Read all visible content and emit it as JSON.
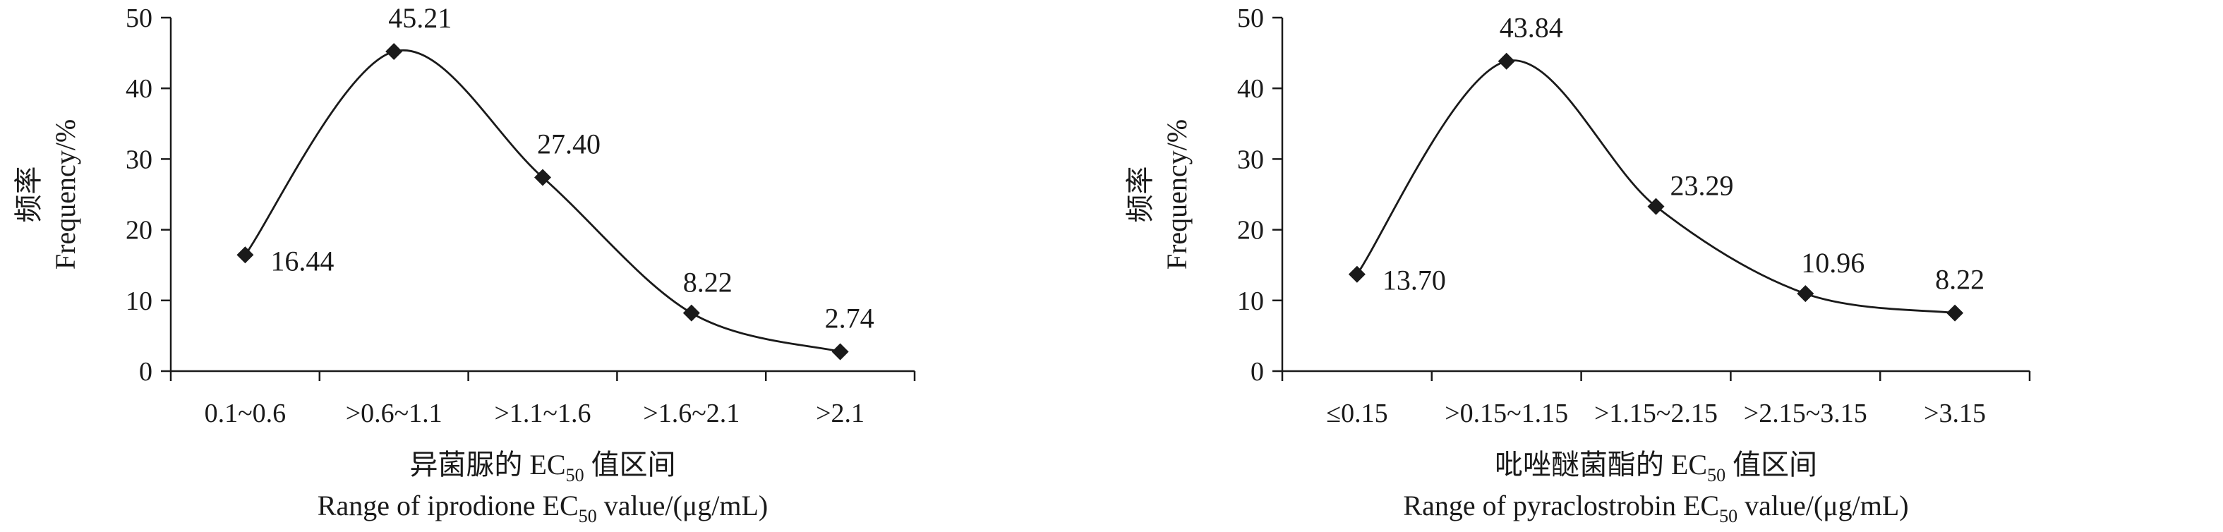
{
  "chart_data": [
    {
      "type": "line",
      "smooth": true,
      "marker": "diamond",
      "categories": [
        "0.1~0.6",
        ">0.6~1.1",
        ">1.1~1.6",
        ">1.6~2.1",
        ">2.1"
      ],
      "values": [
        16.44,
        45.21,
        27.4,
        8.22,
        2.74
      ],
      "value_labels": [
        "16.44",
        "45.21",
        "27.40",
        "8.22",
        "2.74"
      ],
      "ylabel_cn": "频率",
      "ylabel_en": "Frequency/%",
      "xlabel_cn_pre": "异菌脲的 EC",
      "xlabel_cn_sub": "50",
      "xlabel_cn_post": " 值区间",
      "xlabel_en_pre": "Range of iprodione EC",
      "xlabel_en_sub": "50",
      "xlabel_en_post": " value/(μg/mL)",
      "ylim": [
        0,
        50
      ],
      "yticks": [
        0,
        10,
        20,
        30,
        40,
        50
      ],
      "grid": false
    },
    {
      "type": "line",
      "smooth": true,
      "marker": "diamond",
      "categories": [
        "≤0.15",
        ">0.15~1.15",
        ">1.15~2.15",
        ">2.15~3.15",
        ">3.15"
      ],
      "values": [
        13.7,
        43.84,
        23.29,
        10.96,
        8.22
      ],
      "value_labels": [
        "13.70",
        "43.84",
        "23.29",
        "10.96",
        "8.22"
      ],
      "ylabel_cn": "频率",
      "ylabel_en": "Frequency/%",
      "xlabel_cn_pre": "吡唑醚菌酯的 EC",
      "xlabel_cn_sub": "50",
      "xlabel_cn_post": " 值区间",
      "xlabel_en_pre": "Range of pyraclostrobin EC",
      "xlabel_en_sub": "50",
      "xlabel_en_post": " value/(μg/mL)",
      "ylim": [
        0,
        50
      ],
      "yticks": [
        0,
        10,
        20,
        30,
        40,
        50
      ],
      "grid": false
    }
  ]
}
